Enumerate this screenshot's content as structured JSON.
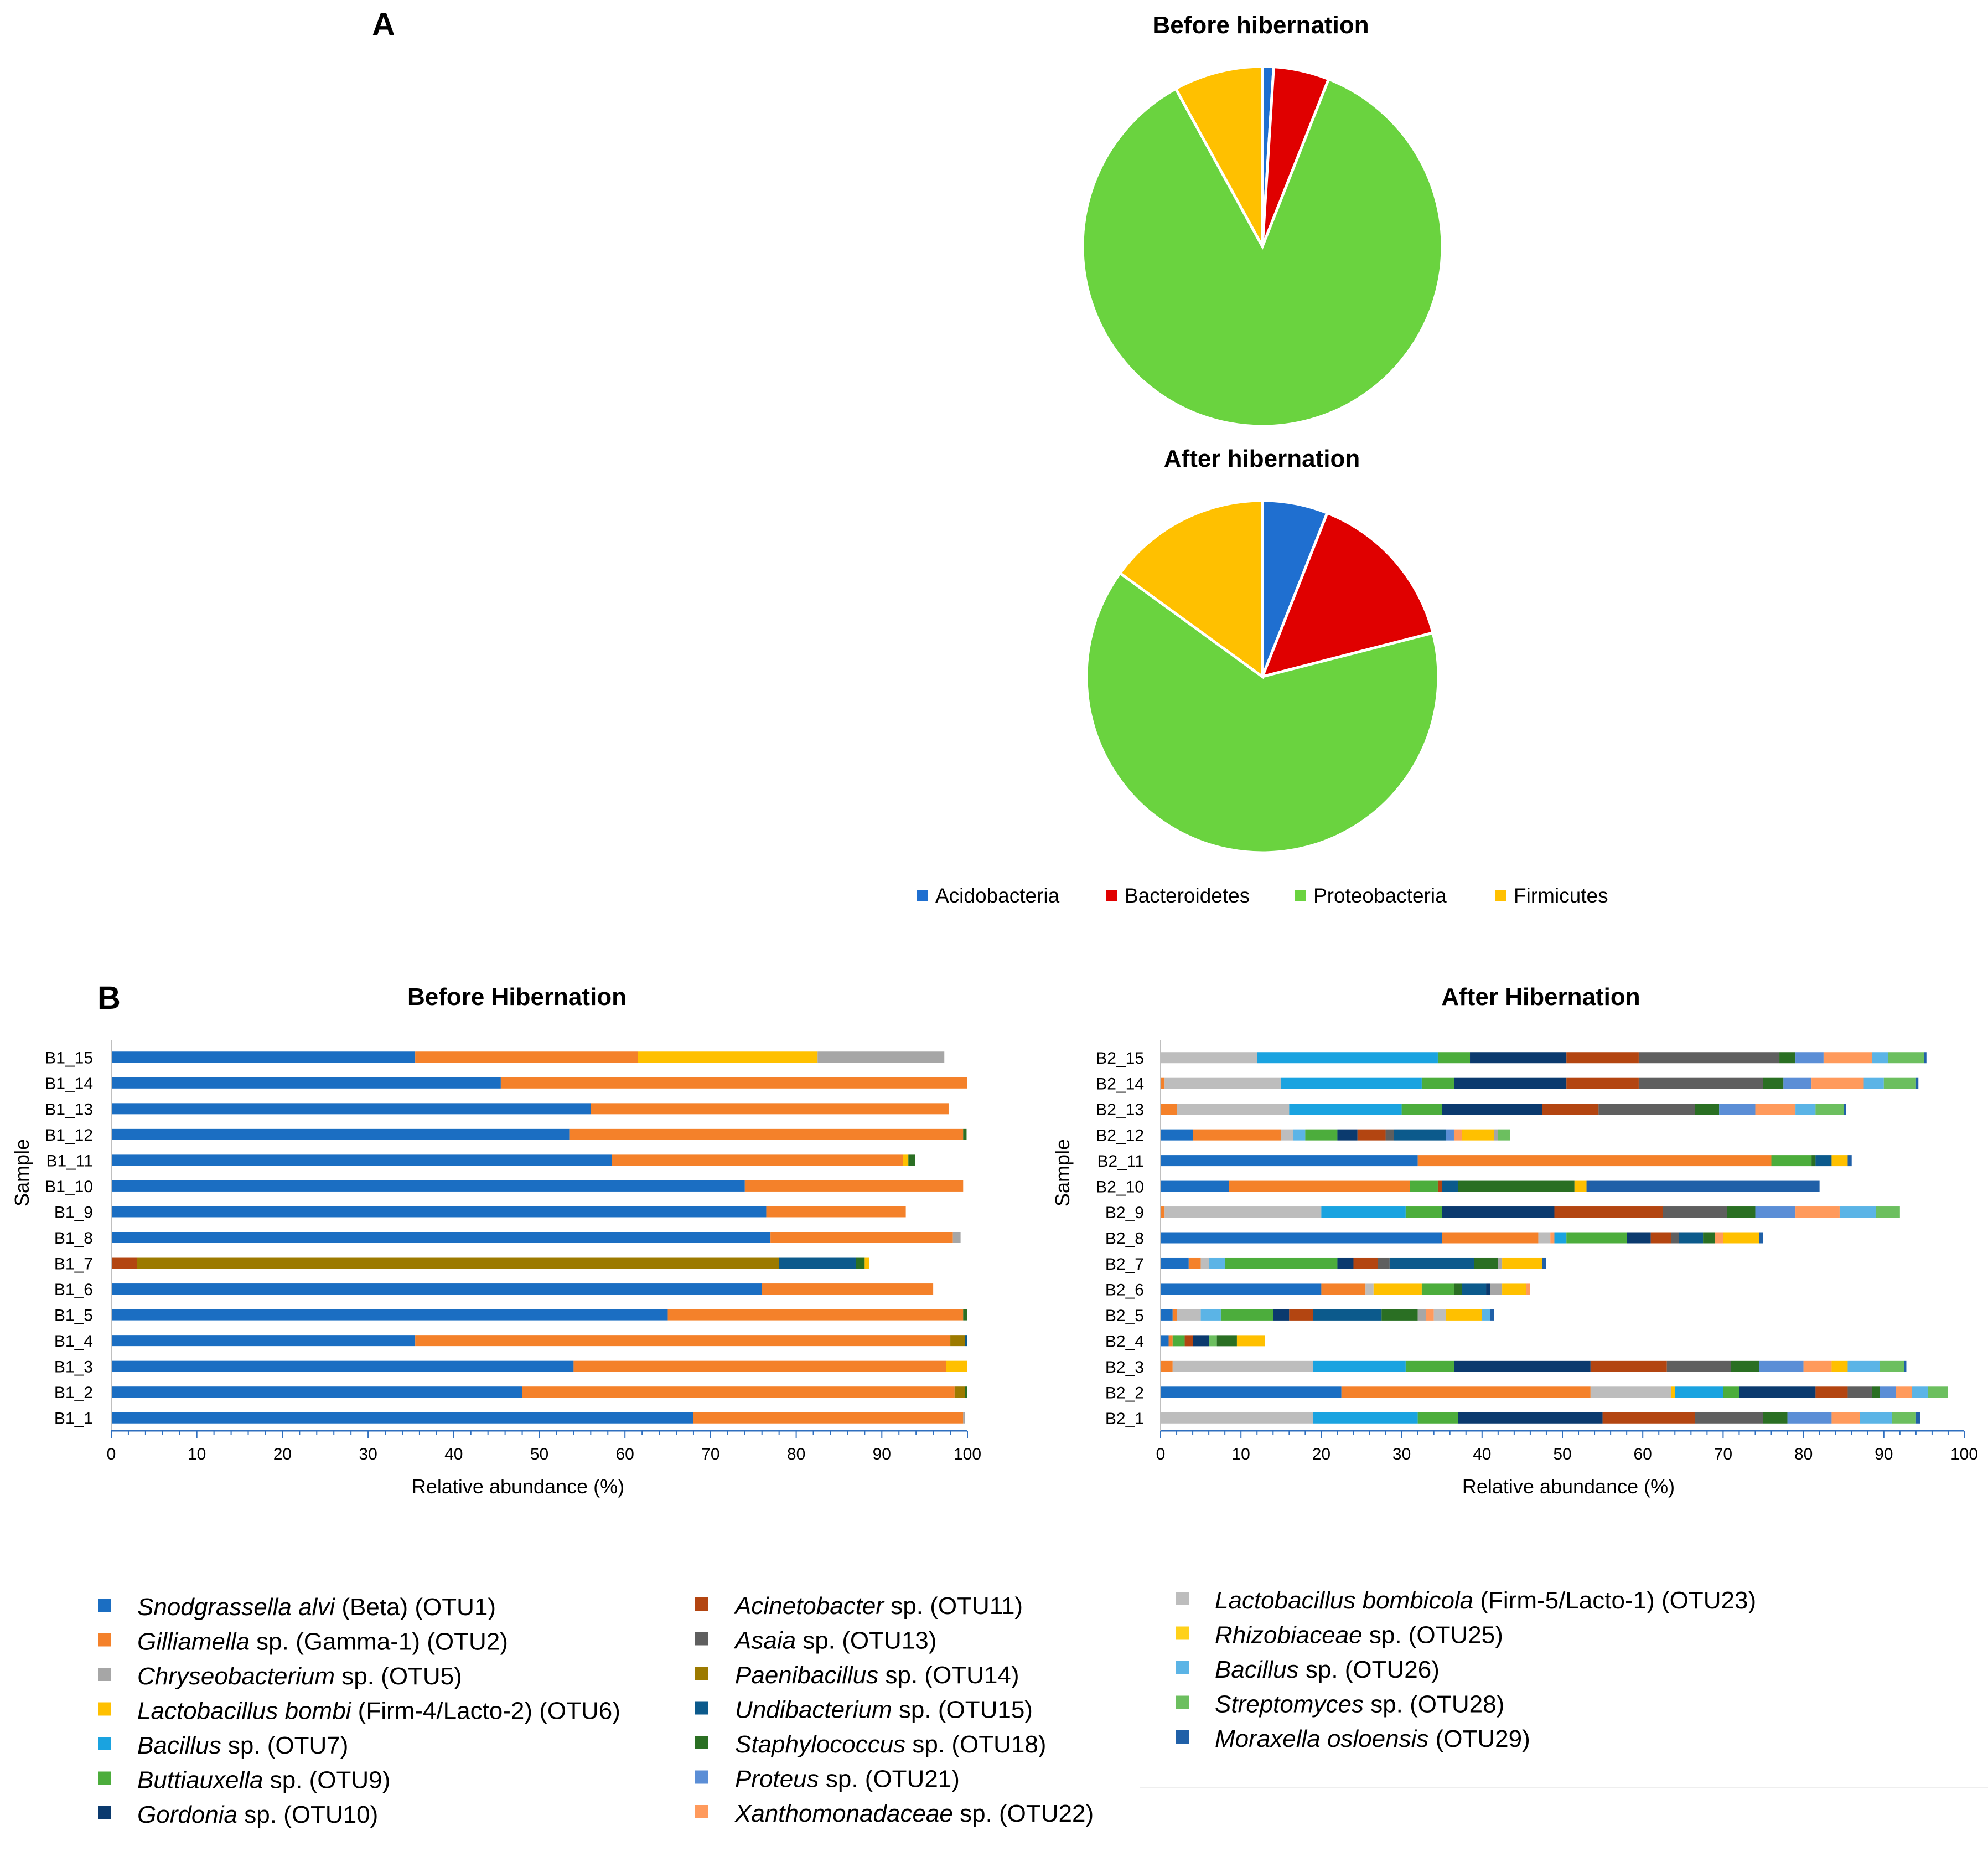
{
  "panels": {
    "a": "A",
    "b": "B"
  },
  "colors": {
    "Acidobacteria": "#1f6fd0",
    "Bacteroidetes": "#e00000",
    "Proteobacteria": "#6ad33f",
    "Firmicutes": "#ffc000",
    "OTU1": "#1b6ec2",
    "OTU2": "#f4812a",
    "OTU5": "#a6a6a6",
    "OTU6": "#ffc000",
    "OTU7": "#1aa3e0",
    "OTU9": "#4cad3c",
    "OTU10": "#0b3a6e",
    "OTU11": "#b34511",
    "OTU13": "#5f5f5f",
    "OTU14": "#9c7a00",
    "OTU15": "#0c5a8c",
    "OTU18": "#2a6f23",
    "OTU21": "#5b8ed6",
    "OTU22": "#ff9a5c",
    "OTU23": "#bdbdbd",
    "OTU25": "#ffd11a",
    "OTU26": "#5bb4e6",
    "OTU28": "#6cbf5f",
    "OTU29": "#2060a8"
  },
  "chart_data": [
    {
      "type": "pie",
      "title": "Before hibernation",
      "labels": [
        "Acidobacteria",
        "Bacteroidetes",
        "Proteobacteria",
        "Firmicutes"
      ],
      "values": [
        1,
        5,
        86,
        8
      ]
    },
    {
      "type": "pie",
      "title": "After hibernation",
      "labels": [
        "Acidobacteria",
        "Bacteroidetes",
        "Proteobacteria",
        "Firmicutes"
      ],
      "values": [
        6,
        15,
        64,
        15
      ]
    },
    {
      "type": "bar",
      "orientation": "horizontal-stacked",
      "title": "Before Hibernation",
      "xlabel": "Relative abundance (%)",
      "ylabel": "Sample",
      "xlim": [
        0,
        100
      ],
      "xticks": [
        "0",
        "10",
        "20",
        "30",
        "40",
        "50",
        "60",
        "70",
        "80",
        "90",
        "100"
      ],
      "categories": [
        "B1_1",
        "B1_2",
        "B1_3",
        "B1_4",
        "B1_5",
        "B1_6",
        "B1_7",
        "B1_8",
        "B1_9",
        "B1_10",
        "B1_11",
        "B1_12",
        "B1_13",
        "B1_14",
        "B1_15"
      ],
      "rows": [
        [
          [
            "OTU1",
            68
          ],
          [
            "OTU2",
            31.5
          ],
          [
            "OTU5",
            0.2
          ]
        ],
        [
          [
            "OTU1",
            48
          ],
          [
            "OTU2",
            50.5
          ],
          [
            "OTU14",
            1.2
          ],
          [
            "OTU18",
            0.3
          ]
        ],
        [
          [
            "OTU1",
            54
          ],
          [
            "OTU2",
            43.5
          ],
          [
            "OTU6",
            2.5
          ]
        ],
        [
          [
            "OTU1",
            35.5
          ],
          [
            "OTU2",
            62.5
          ],
          [
            "OTU14",
            1.7
          ],
          [
            "OTU15",
            0.3
          ]
        ],
        [
          [
            "OTU1",
            65
          ],
          [
            "OTU2",
            34.5
          ],
          [
            "OTU18",
            0.5
          ]
        ],
        [
          [
            "OTU1",
            76
          ],
          [
            "OTU2",
            20
          ]
        ],
        [
          [
            "OTU11",
            3
          ],
          [
            "OTU14",
            75
          ],
          [
            "OTU15",
            9
          ],
          [
            "OTU18",
            1
          ],
          [
            "OTU6",
            0.5
          ]
        ],
        [
          [
            "OTU1",
            77
          ],
          [
            "OTU2",
            21.3
          ],
          [
            "OTU5",
            0.9
          ]
        ],
        [
          [
            "OTU1",
            76.5
          ],
          [
            "OTU2",
            16.3
          ]
        ],
        [
          [
            "OTU1",
            74
          ],
          [
            "OTU2",
            25.5
          ]
        ],
        [
          [
            "OTU1",
            58.5
          ],
          [
            "OTU2",
            34
          ],
          [
            "OTU6",
            0.6
          ],
          [
            "OTU18",
            0.8
          ]
        ],
        [
          [
            "OTU1",
            53.5
          ],
          [
            "OTU2",
            46
          ],
          [
            "OTU18",
            0.4
          ]
        ],
        [
          [
            "OTU1",
            56
          ],
          [
            "OTU2",
            41.8
          ]
        ],
        [
          [
            "OTU1",
            45.5
          ],
          [
            "OTU2",
            54.5
          ]
        ],
        [
          [
            "OTU1",
            35.5
          ],
          [
            "OTU2",
            26
          ],
          [
            "OTU6",
            21
          ],
          [
            "OTU5",
            14.8
          ]
        ]
      ]
    },
    {
      "type": "bar",
      "orientation": "horizontal-stacked",
      "title": "After Hibernation",
      "xlabel": "Relative abundance (%)",
      "ylabel": "Sample",
      "xlim": [
        0,
        100
      ],
      "xticks": [
        "0",
        "10",
        "20",
        "30",
        "40",
        "50",
        "60",
        "70",
        "80",
        "90",
        "100"
      ],
      "categories": [
        "B2_1",
        "B2_2",
        "B2_3",
        "B2_4",
        "B2_5",
        "B2_6",
        "B2_7",
        "B2_8",
        "B2_9",
        "B2_10",
        "B2_11",
        "B2_12",
        "B2_13",
        "B2_14",
        "B2_15"
      ],
      "rows": [
        [
          [
            "OTU23",
            19
          ],
          [
            "OTU7",
            13
          ],
          [
            "OTU9",
            5
          ],
          [
            "OTU10",
            18
          ],
          [
            "OTU11",
            11.5
          ],
          [
            "OTU13",
            8.5
          ],
          [
            "OTU18",
            3
          ],
          [
            "OTU21",
            5.5
          ],
          [
            "OTU22",
            3.5
          ],
          [
            "OTU26",
            4
          ],
          [
            "OTU28",
            3
          ],
          [
            "OTU29",
            0.5
          ]
        ],
        [
          [
            "OTU1",
            22.5
          ],
          [
            "OTU2",
            31
          ],
          [
            "OTU23",
            10
          ],
          [
            "OTU6",
            0.5
          ],
          [
            "OTU7",
            6
          ],
          [
            "OTU9",
            2
          ],
          [
            "OTU10",
            9.5
          ],
          [
            "OTU11",
            4
          ],
          [
            "OTU13",
            3
          ],
          [
            "OTU18",
            1
          ],
          [
            "OTU21",
            2
          ],
          [
            "OTU22",
            2
          ],
          [
            "OTU26",
            2
          ],
          [
            "OTU28",
            2.5
          ]
        ],
        [
          [
            "OTU2",
            1.5
          ],
          [
            "OTU23",
            17.5
          ],
          [
            "OTU7",
            11.5
          ],
          [
            "OTU9",
            6
          ],
          [
            "OTU10",
            17
          ],
          [
            "OTU11",
            9.5
          ],
          [
            "OTU13",
            8
          ],
          [
            "OTU18",
            3.5
          ],
          [
            "OTU21",
            5.5
          ],
          [
            "OTU22",
            3.5
          ],
          [
            "OTU6",
            2
          ],
          [
            "OTU26",
            4
          ],
          [
            "OTU28",
            3
          ],
          [
            "OTU29",
            0.3
          ]
        ],
        [
          [
            "OTU1",
            1
          ],
          [
            "OTU2",
            0.5
          ],
          [
            "OTU9",
            1.5
          ],
          [
            "OTU11",
            1
          ],
          [
            "OTU10",
            2
          ],
          [
            "OTU28",
            1
          ],
          [
            "OTU18",
            2.5
          ],
          [
            "OTU6",
            3.5
          ]
        ],
        [
          [
            "OTU1",
            1.5
          ],
          [
            "OTU2",
            0.5
          ],
          [
            "OTU23",
            3
          ],
          [
            "OTU26",
            2.5
          ],
          [
            "OTU9",
            6.5
          ],
          [
            "OTU10",
            2
          ],
          [
            "OTU11",
            3
          ],
          [
            "OTU15",
            8.5
          ],
          [
            "OTU18",
            4.5
          ],
          [
            "OTU5",
            1
          ],
          [
            "OTU22",
            1
          ],
          [
            "OTU23",
            1.5
          ],
          [
            "OTU6",
            4.5
          ],
          [
            "OTU26",
            1
          ],
          [
            "OTU29",
            0.5
          ]
        ],
        [
          [
            "OTU1",
            20
          ],
          [
            "OTU2",
            5.5
          ],
          [
            "OTU23",
            1
          ],
          [
            "OTU6",
            6
          ],
          [
            "OTU9",
            4
          ],
          [
            "OTU18",
            1
          ],
          [
            "OTU15",
            3
          ],
          [
            "OTU10",
            0.5
          ],
          [
            "OTU5",
            1.5
          ],
          [
            "OTU6",
            3
          ],
          [
            "OTU22",
            0.5
          ]
        ],
        [
          [
            "OTU1",
            3.5
          ],
          [
            "OTU2",
            1.5
          ],
          [
            "OTU23",
            1
          ],
          [
            "OTU26",
            2
          ],
          [
            "OTU9",
            14
          ],
          [
            "OTU10",
            2
          ],
          [
            "OTU11",
            3
          ],
          [
            "OTU13",
            1.5
          ],
          [
            "OTU15",
            10.5
          ],
          [
            "OTU18",
            3
          ],
          [
            "OTU5",
            0.5
          ],
          [
            "OTU6",
            5
          ],
          [
            "OTU29",
            0.5
          ]
        ],
        [
          [
            "OTU1",
            35
          ],
          [
            "OTU2",
            12
          ],
          [
            "OTU23",
            1.5
          ],
          [
            "OTU22",
            0.5
          ],
          [
            "OTU7",
            1.5
          ],
          [
            "OTU9",
            7.5
          ],
          [
            "OTU10",
            3
          ],
          [
            "OTU11",
            2.5
          ],
          [
            "OTU13",
            1
          ],
          [
            "OTU15",
            3
          ],
          [
            "OTU18",
            1.5
          ],
          [
            "OTU22",
            1
          ],
          [
            "OTU6",
            4.5
          ],
          [
            "OTU29",
            0.5
          ]
        ],
        [
          [
            "OTU2",
            0.5
          ],
          [
            "OTU23",
            19.5
          ],
          [
            "OTU7",
            10.5
          ],
          [
            "OTU9",
            4.5
          ],
          [
            "OTU10",
            14
          ],
          [
            "OTU11",
            13.5
          ],
          [
            "OTU13",
            8
          ],
          [
            "OTU18",
            3.5
          ],
          [
            "OTU21",
            5
          ],
          [
            "OTU22",
            5.5
          ],
          [
            "OTU26",
            4.5
          ],
          [
            "OTU28",
            3
          ]
        ],
        [
          [
            "OTU1",
            8.5
          ],
          [
            "OTU2",
            22.5
          ],
          [
            "OTU9",
            3.5
          ],
          [
            "OTU11",
            0.5
          ],
          [
            "OTU15",
            2
          ],
          [
            "OTU18",
            14.5
          ],
          [
            "OTU6",
            1.5
          ],
          [
            "OTU29",
            29
          ]
        ],
        [
          [
            "OTU1",
            32
          ],
          [
            "OTU2",
            44
          ],
          [
            "OTU9",
            5
          ],
          [
            "OTU18",
            0.5
          ],
          [
            "OTU15",
            2
          ],
          [
            "OTU6",
            2
          ],
          [
            "OTU29",
            0.5
          ]
        ],
        [
          [
            "OTU1",
            4
          ],
          [
            "OTU2",
            11
          ],
          [
            "OTU23",
            1.5
          ],
          [
            "OTU26",
            1.5
          ],
          [
            "OTU9",
            4
          ],
          [
            "OTU10",
            2.5
          ],
          [
            "OTU11",
            3.5
          ],
          [
            "OTU13",
            1
          ],
          [
            "OTU15",
            6.5
          ],
          [
            "OTU21",
            1
          ],
          [
            "OTU22",
            1
          ],
          [
            "OTU6",
            4
          ],
          [
            "OTU5",
            0.5
          ],
          [
            "OTU28",
            1.5
          ]
        ],
        [
          [
            "OTU2",
            2
          ],
          [
            "OTU23",
            14
          ],
          [
            "OTU7",
            14
          ],
          [
            "OTU9",
            5
          ],
          [
            "OTU10",
            12.5
          ],
          [
            "OTU11",
            7
          ],
          [
            "OTU13",
            12
          ],
          [
            "OTU18",
            3
          ],
          [
            "OTU21",
            4.5
          ],
          [
            "OTU22",
            5
          ],
          [
            "OTU26",
            2.5
          ],
          [
            "OTU28",
            3.5
          ],
          [
            "OTU29",
            0.3
          ]
        ],
        [
          [
            "OTU2",
            0.5
          ],
          [
            "OTU23",
            14.5
          ],
          [
            "OTU7",
            17.5
          ],
          [
            "OTU9",
            4
          ],
          [
            "OTU10",
            14
          ],
          [
            "OTU11",
            9
          ],
          [
            "OTU13",
            15.5
          ],
          [
            "OTU18",
            2.5
          ],
          [
            "OTU21",
            3.5
          ],
          [
            "OTU22",
            6.5
          ],
          [
            "OTU26",
            2.5
          ],
          [
            "OTU28",
            4
          ],
          [
            "OTU29",
            0.3
          ]
        ],
        [
          [
            "OTU23",
            12
          ],
          [
            "OTU7",
            22.5
          ],
          [
            "OTU9",
            4
          ],
          [
            "OTU10",
            12
          ],
          [
            "OTU11",
            9
          ],
          [
            "OTU13",
            17.5
          ],
          [
            "OTU18",
            2
          ],
          [
            "OTU21",
            3.5
          ],
          [
            "OTU22",
            6
          ],
          [
            "OTU26",
            2
          ],
          [
            "OTU28",
            4.5
          ],
          [
            "OTU29",
            0.3
          ]
        ]
      ]
    }
  ],
  "legendA": [
    {
      "key": "Acidobacteria",
      "label": "Acidobacteria"
    },
    {
      "key": "Bacteroidetes",
      "label": "Bacteroidetes"
    },
    {
      "key": "Proteobacteria",
      "label": "Proteobacteria"
    },
    {
      "key": "Firmicutes",
      "label": "Firmicutes"
    }
  ],
  "legendB": [
    [
      {
        "key": "OTU1",
        "italic": "Snodgrassella alvi",
        "rest": " (Beta) (OTU1)"
      },
      {
        "key": "OTU2",
        "italic": "Gilliamella",
        "rest": " sp. (Gamma-1) (OTU2)"
      },
      {
        "key": "OTU5",
        "italic": "Chryseobacterium",
        "rest": " sp. (OTU5)"
      },
      {
        "key": "OTU6",
        "italic": "Lactobacillus bombi",
        "rest": " (Firm-4/Lacto-2) (OTU6)"
      },
      {
        "key": "OTU7",
        "italic": "Bacillus",
        "rest": " sp. (OTU7)"
      },
      {
        "key": "OTU9",
        "italic": "Buttiauxella",
        "rest": " sp. (OTU9)"
      },
      {
        "key": "OTU10",
        "italic": "Gordonia",
        "rest": " sp. (OTU10)"
      }
    ],
    [
      {
        "key": "OTU11",
        "italic": "Acinetobacter",
        "rest": " sp. (OTU11)"
      },
      {
        "key": "OTU13",
        "italic": "Asaia",
        "rest": " sp. (OTU13)"
      },
      {
        "key": "OTU14",
        "italic": "Paenibacillus",
        "rest": " sp. (OTU14)"
      },
      {
        "key": "OTU15",
        "italic": "Undibacterium",
        "rest": " sp. (OTU15)"
      },
      {
        "key": "OTU18",
        "italic": "Staphylococcus",
        "rest": " sp. (OTU18)"
      },
      {
        "key": "OTU21",
        "italic": "Proteus",
        "rest": " sp. (OTU21)"
      },
      {
        "key": "OTU22",
        "italic": "Xanthomonadaceae",
        "rest": " sp. (OTU22)"
      }
    ],
    [
      {
        "key": "OTU23",
        "italic": "Lactobacillus bombicola",
        "rest": " (Firm-5/Lacto-1) (OTU23)"
      },
      {
        "key": "OTU25",
        "italic": "Rhizobiaceae",
        "rest": " sp. (OTU25)"
      },
      {
        "key": "OTU26",
        "italic": "Bacillus",
        "rest": " sp. (OTU26)"
      },
      {
        "key": "OTU28",
        "italic": "Streptomyces",
        "rest": " sp. (OTU28)"
      },
      {
        "key": "OTU29",
        "italic": "Moraxella osloensis",
        "rest": " (OTU29)"
      }
    ]
  ]
}
